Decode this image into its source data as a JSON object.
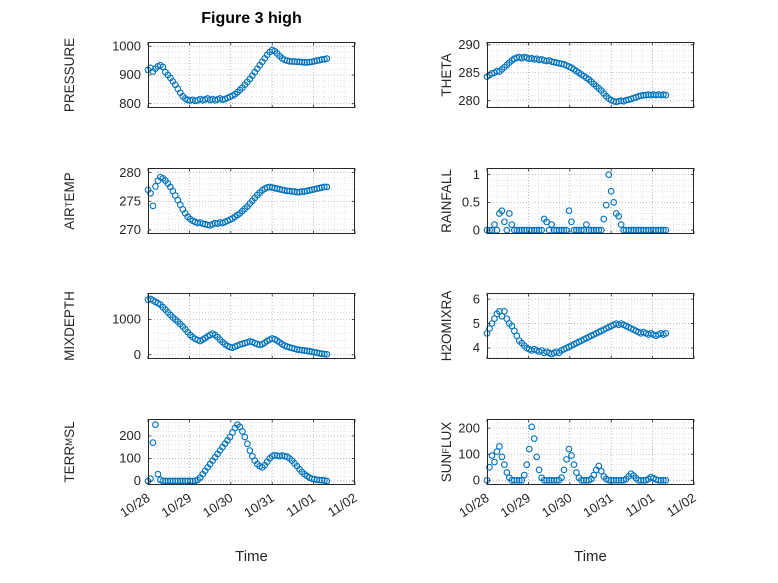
{
  "title": "Figure 3 high",
  "xlabel": "Time",
  "colors": {
    "marker": "#0072BD",
    "axis": "#262626",
    "grid_major": "#ababab",
    "grid_minor": "#d8d8d8"
  },
  "x_axis": {
    "lim": [
      0,
      5
    ],
    "ticks": [
      0,
      1,
      2,
      3,
      4,
      5
    ],
    "labels": [
      "10/28",
      "10/29",
      "10/30",
      "10/31",
      "11/01",
      "11/02"
    ]
  },
  "chart_data": [
    {
      "id": "pressure",
      "type": "scatter",
      "col": 0,
      "row": 0,
      "ylabel_pre": "PRESSURE",
      "ylabel_sub": "",
      "ylabel_post": "",
      "yticks": [
        800,
        900,
        1000
      ],
      "ylim": [
        785,
        1015
      ],
      "x_start": 0,
      "x_step": 0.06,
      "values": [
        918,
        925,
        912,
        922,
        930,
        934,
        928,
        910,
        900,
        890,
        878,
        866,
        852,
        838,
        826,
        818,
        813,
        811,
        814,
        810,
        812,
        816,
        812,
        815,
        818,
        813,
        816,
        812,
        815,
        818,
        814,
        816,
        820,
        824,
        828,
        833,
        840,
        848,
        856,
        866,
        876,
        886,
        898,
        910,
        922,
        934,
        946,
        958,
        970,
        980,
        987,
        983,
        975,
        966,
        958,
        953,
        950,
        948,
        947,
        947,
        946,
        946,
        945,
        944,
        944,
        945,
        946,
        948,
        950,
        952,
        954,
        955,
        957
      ]
    },
    {
      "id": "theta",
      "type": "scatter",
      "col": 1,
      "row": 0,
      "ylabel_pre": "THETA",
      "ylabel_sub": "",
      "ylabel_post": "",
      "yticks": [
        280,
        285,
        290
      ],
      "ylim": [
        278.7,
        290.5
      ],
      "x_start": 0,
      "x_step": 0.06,
      "values": [
        284.3,
        284.6,
        284.9,
        285.0,
        285.3,
        285.2,
        285.6,
        286.0,
        286.4,
        286.8,
        287.2,
        287.5,
        287.7,
        287.8,
        287.6,
        287.8,
        287.7,
        287.5,
        287.6,
        287.4,
        287.5,
        287.3,
        287.4,
        287.2,
        287.1,
        287.2,
        287.0,
        286.9,
        286.8,
        286.7,
        286.6,
        286.5,
        286.3,
        286.1,
        285.9,
        285.6,
        285.3,
        285.0,
        284.7,
        284.4,
        284.1,
        283.8,
        283.4,
        283.0,
        282.6,
        282.2,
        281.8,
        281.3,
        280.8,
        280.4,
        280.1,
        279.9,
        279.8,
        279.9,
        280.0,
        279.9,
        280.1,
        280.2,
        280.3,
        280.5,
        280.6,
        280.8,
        280.9,
        281.0,
        281.0,
        281.1,
        281.0,
        281.1,
        281.0,
        281.1,
        281.0,
        281.1,
        281.0
      ]
    },
    {
      "id": "air-temp",
      "type": "scatter",
      "col": 0,
      "row": 1,
      "ylabel_pre": "AIR",
      "ylabel_sub": "T",
      "ylabel_post": "EMP",
      "yticks": [
        270,
        275,
        280
      ],
      "ylim": [
        269.3,
        280.8
      ],
      "x_start": 0,
      "x_step": 0.06,
      "values": [
        277.0,
        276.4,
        274.2,
        277.6,
        278.6,
        279.2,
        279.0,
        278.6,
        278.1,
        277.5,
        276.8,
        276.0,
        275.2,
        274.4,
        273.6,
        272.9,
        272.3,
        271.9,
        271.6,
        271.4,
        271.2,
        271.3,
        271.1,
        271.0,
        270.9,
        270.8,
        271.0,
        271.2,
        271.1,
        271.3,
        271.2,
        271.4,
        271.6,
        271.8,
        272.0,
        272.3,
        272.6,
        272.9,
        273.3,
        273.7,
        274.1,
        274.6,
        275.1,
        275.6,
        276.1,
        276.5,
        276.9,
        277.2,
        277.4,
        277.5,
        277.4,
        277.3,
        277.2,
        277.1,
        277.0,
        276.9,
        276.8,
        276.8,
        276.7,
        276.7,
        276.6,
        276.6,
        276.7,
        276.7,
        276.8,
        276.9,
        277.0,
        277.1,
        277.2,
        277.3,
        277.4,
        277.5,
        277.5
      ]
    },
    {
      "id": "rainfall",
      "type": "scatter",
      "col": 1,
      "row": 1,
      "ylabel_pre": "RAINFALL",
      "ylabel_sub": "",
      "ylabel_post": "",
      "yticks": [
        0,
        0.5,
        1
      ],
      "ylim": [
        -0.07,
        1.12
      ],
      "x_start": 0,
      "x_step": 0.06,
      "values": [
        0,
        0,
        0,
        0.1,
        0,
        0.3,
        0.35,
        0.15,
        0,
        0.3,
        0.1,
        0,
        0,
        0,
        0,
        0,
        0,
        0,
        0,
        0,
        0,
        0,
        0,
        0.2,
        0.15,
        0,
        0.1,
        0,
        0,
        0,
        0,
        0,
        0,
        0.35,
        0.15,
        0,
        0,
        0,
        0,
        0,
        0.1,
        0,
        0,
        0,
        0,
        0,
        0,
        0.2,
        0.45,
        1.0,
        0.7,
        0.5,
        0.3,
        0.25,
        0.1,
        0,
        0,
        0,
        0,
        0,
        0,
        0,
        0,
        0,
        0,
        0,
        0,
        0,
        0,
        0,
        0,
        0,
        0
      ]
    },
    {
      "id": "mixdepth",
      "type": "scatter",
      "col": 0,
      "row": 2,
      "ylabel_pre": "MIXDEPTH",
      "ylabel_sub": "",
      "ylabel_post": "",
      "yticks": [
        0,
        1000
      ],
      "ylim": [
        -120,
        1750
      ],
      "x_start": 0,
      "x_step": 0.06,
      "values": [
        1560,
        1580,
        1540,
        1500,
        1460,
        1420,
        1350,
        1280,
        1200,
        1130,
        1060,
        1000,
        940,
        870,
        800,
        720,
        640,
        560,
        500,
        450,
        420,
        390,
        430,
        470,
        520,
        560,
        600,
        560,
        500,
        430,
        360,
        300,
        250,
        220,
        200,
        230,
        260,
        290,
        310,
        330,
        350,
        380,
        360,
        330,
        300,
        280,
        300,
        340,
        390,
        430,
        460,
        440,
        400,
        350,
        300,
        260,
        230,
        210,
        190,
        170,
        150,
        140,
        130,
        120,
        110,
        100,
        90,
        70,
        60,
        40,
        30,
        20,
        10
      ]
    },
    {
      "id": "h2omixra",
      "type": "scatter",
      "col": 1,
      "row": 2,
      "ylabel_pre": "H2OMIXRA",
      "ylabel_sub": "",
      "ylabel_post": "",
      "yticks": [
        4,
        5,
        6
      ],
      "ylim": [
        3.55,
        6.25
      ],
      "x_start": 0,
      "x_step": 0.06,
      "values": [
        4.6,
        4.8,
        5.0,
        5.2,
        5.4,
        5.5,
        5.3,
        5.5,
        5.2,
        5.0,
        4.9,
        4.7,
        4.5,
        4.3,
        4.2,
        4.1,
        4.0,
        3.95,
        3.9,
        3.95,
        3.9,
        3.85,
        3.9,
        3.8,
        3.85,
        3.8,
        3.75,
        3.8,
        3.85,
        3.8,
        3.9,
        3.95,
        4.0,
        4.05,
        4.1,
        4.15,
        4.2,
        4.25,
        4.3,
        4.35,
        4.4,
        4.45,
        4.5,
        4.55,
        4.6,
        4.65,
        4.7,
        4.75,
        4.8,
        4.85,
        4.9,
        4.95,
        5.0,
        4.95,
        5.0,
        4.95,
        4.9,
        4.85,
        4.8,
        4.75,
        4.7,
        4.65,
        4.6,
        4.65,
        4.6,
        4.55,
        4.6,
        4.55,
        4.5,
        4.55,
        4.6,
        4.55,
        4.6
      ]
    },
    {
      "id": "terr-msl",
      "type": "scatter",
      "col": 0,
      "row": 3,
      "ylabel_pre": "TERR",
      "ylabel_sub": "M",
      "ylabel_post": "SL",
      "yticks": [
        0,
        100,
        200
      ],
      "ylim": [
        -18,
        275
      ],
      "x_start": 0,
      "x_step": 0.06,
      "values": [
        0,
        10,
        170,
        250,
        30,
        5,
        0,
        0,
        0,
        0,
        0,
        0,
        0,
        0,
        0,
        0,
        0,
        0,
        0,
        0,
        5,
        15,
        30,
        45,
        60,
        75,
        90,
        105,
        120,
        135,
        150,
        165,
        180,
        195,
        215,
        235,
        250,
        240,
        220,
        195,
        165,
        135,
        110,
        90,
        75,
        65,
        60,
        70,
        85,
        100,
        110,
        115,
        112,
        110,
        113,
        110,
        108,
        100,
        90,
        78,
        65,
        52,
        40,
        30,
        22,
        15,
        10,
        8,
        5,
        4,
        3,
        2,
        0
      ]
    },
    {
      "id": "sun-flux",
      "type": "scatter",
      "col": 1,
      "row": 3,
      "ylabel_pre": "SUN",
      "ylabel_sub": "F",
      "ylabel_post": "LUX",
      "yticks": [
        0,
        100,
        200
      ],
      "ylim": [
        -18,
        235
      ],
      "x_start": 0,
      "x_step": 0.06,
      "values": [
        0,
        50,
        95,
        70,
        110,
        130,
        90,
        60,
        30,
        10,
        0,
        0,
        0,
        0,
        0,
        20,
        60,
        120,
        205,
        160,
        90,
        40,
        10,
        0,
        0,
        0,
        0,
        0,
        0,
        0,
        10,
        40,
        80,
        120,
        95,
        60,
        30,
        10,
        0,
        0,
        0,
        0,
        5,
        20,
        40,
        55,
        35,
        15,
        5,
        0,
        0,
        0,
        0,
        0,
        0,
        0,
        5,
        15,
        25,
        18,
        8,
        0,
        0,
        0,
        0,
        5,
        12,
        8,
        3,
        0,
        0,
        0,
        0
      ]
    }
  ]
}
